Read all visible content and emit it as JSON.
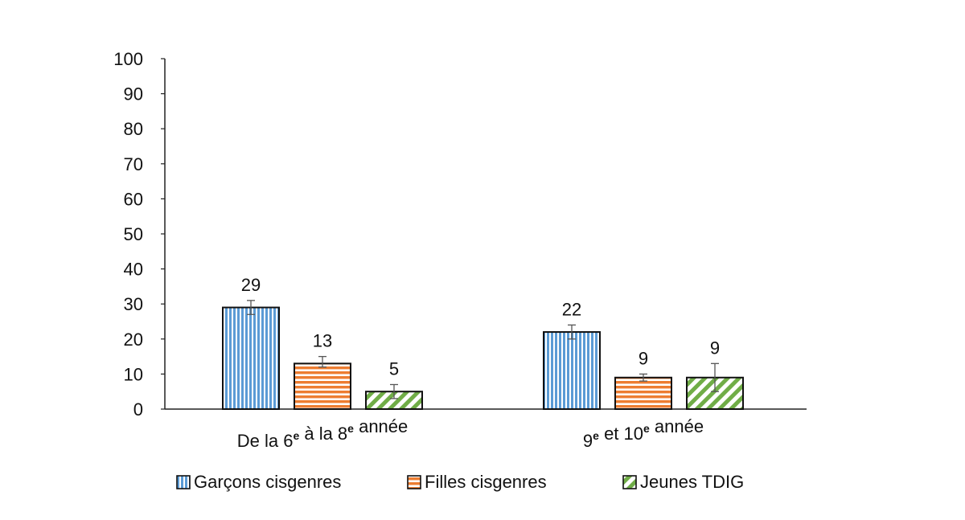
{
  "chart_data": {
    "type": "bar",
    "title": "",
    "xlabel": "",
    "ylabel": "",
    "ylim": [
      0,
      100
    ],
    "yticks": [
      0,
      10,
      20,
      30,
      40,
      50,
      60,
      70,
      80,
      90,
      100
    ],
    "categories": [
      {
        "parts": [
          {
            "text": "De la 6"
          },
          {
            "text": "e",
            "sup": true
          },
          {
            "text": "  à la 8"
          },
          {
            "text": "e",
            "sup": true
          },
          {
            "text": "   année"
          }
        ]
      },
      {
        "parts": [
          {
            "text": "9"
          },
          {
            "text": "e",
            "sup": true
          },
          {
            "text": "   et 10"
          },
          {
            "text": "e",
            "sup": true
          },
          {
            "text": "  année"
          }
        ]
      }
    ],
    "series": [
      {
        "name": "Garçons cisgenres",
        "values": [
          29,
          22
        ],
        "labels": [
          "29",
          "22"
        ],
        "err_low": [
          27,
          20
        ],
        "err_high": [
          31,
          24
        ],
        "pattern": "vertical",
        "color": "#5b9bd5"
      },
      {
        "name": "Filles cisgenres",
        "values": [
          13,
          9
        ],
        "labels": [
          "13",
          "9"
        ],
        "err_low": [
          12,
          8
        ],
        "err_high": [
          15,
          10
        ],
        "pattern": "horizontal",
        "color": "#ed7d31"
      },
      {
        "name": "Jeunes TDIG",
        "values": [
          5,
          9
        ],
        "labels": [
          "5",
          "9"
        ],
        "err_low": [
          3,
          5
        ],
        "err_high": [
          7,
          13
        ],
        "pattern": "diagonal",
        "color": "#70ad47"
      }
    ],
    "legend_position": "bottom",
    "grid": false
  }
}
